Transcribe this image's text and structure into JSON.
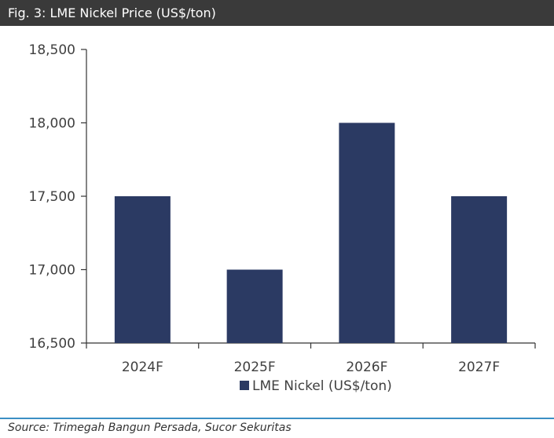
{
  "header": {
    "title": "Fig. 3: LME Nickel Price (US$/ton)"
  },
  "chart_data": {
    "type": "bar",
    "categories": [
      "2024F",
      "2025F",
      "2026F",
      "2027F"
    ],
    "series": [
      {
        "name": "LME Nickel (US$/ton)",
        "values": [
          17500,
          17000,
          18000,
          17500
        ]
      }
    ],
    "ylim": [
      16500,
      18500
    ],
    "yticks": [
      16500,
      17000,
      17500,
      18000,
      18500
    ],
    "ytick_labels": [
      "16,500",
      "17,000",
      "17,500",
      "18,000",
      "18,500"
    ],
    "grid": false,
    "legend_position": "bottom-center",
    "colors": {
      "bar": "#2b3a63",
      "axis": "#333333",
      "text": "#404040"
    }
  },
  "footer": {
    "source": "Source: Trimegah Bangun Persada, Sucor Sekuritas"
  }
}
